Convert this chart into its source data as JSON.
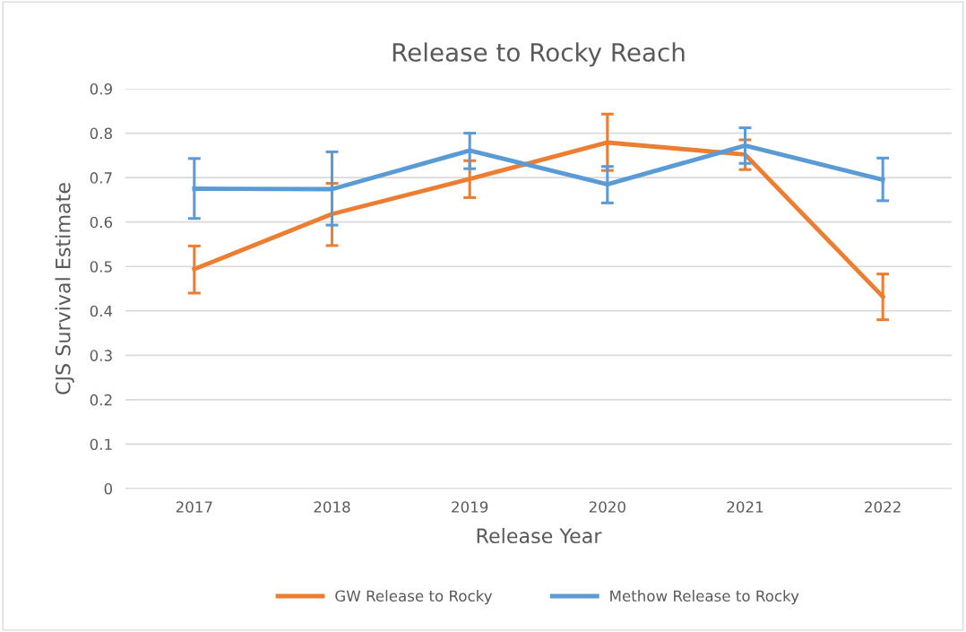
{
  "chart_data": {
    "type": "line",
    "title": "Release to Rocky Reach",
    "xlabel": "Release Year",
    "ylabel": "CJS Survival Estimate",
    "categories": [
      "2017",
      "2018",
      "2019",
      "2020",
      "2021",
      "2022"
    ],
    "series": [
      {
        "name": "GW Release to Rocky",
        "color": "#ed7d31",
        "values": [
          0.494,
          0.618,
          0.697,
          0.779,
          0.752,
          0.432
        ],
        "errors": [
          [
            0.44,
            0.546
          ],
          [
            0.547,
            0.687
          ],
          [
            0.655,
            0.738
          ],
          [
            0.716,
            0.843
          ],
          [
            0.718,
            0.785
          ],
          [
            0.38,
            0.483
          ]
        ]
      },
      {
        "name": "Methow Release to Rocky",
        "color": "#5b9bd5",
        "values": [
          0.675,
          0.674,
          0.761,
          0.685,
          0.772,
          0.695
        ],
        "errors": [
          [
            0.608,
            0.743
          ],
          [
            0.593,
            0.758
          ],
          [
            0.72,
            0.8
          ],
          [
            0.643,
            0.725
          ],
          [
            0.732,
            0.812
          ],
          [
            0.648,
            0.744
          ]
        ]
      }
    ],
    "ylim": [
      0,
      0.9
    ],
    "yticks": [
      0,
      0.1,
      0.2,
      0.3,
      0.4,
      0.5,
      0.6,
      0.7,
      0.8,
      0.9
    ],
    "grid": "y",
    "legend": "bottom",
    "marker": "none",
    "line_style": "solid"
  }
}
